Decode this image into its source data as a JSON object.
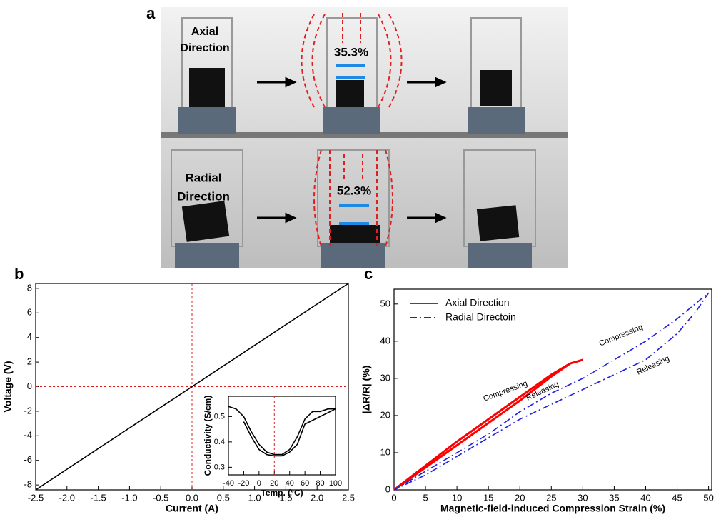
{
  "panel_a": {
    "label": "a",
    "top_label": [
      "Axial",
      "Direction"
    ],
    "top_strain": "35.3%",
    "bottom_label": [
      "Radial",
      "Direction"
    ],
    "bottom_strain": "52.3%"
  },
  "chart_data": [
    {
      "type": "line",
      "label": "b",
      "xlabel": "Current (A)",
      "ylabel": "Voltage (V)",
      "annotations": [
        "A",
        "V"
      ],
      "xlim": [
        -2.5,
        2.5
      ],
      "ylim": [
        -8.4,
        8.4
      ],
      "xticks": [
        -2.5,
        {
          "value": -2,
          "label": "-2.0"
        },
        -1.5,
        {
          "value": -1,
          "label": "-1.0"
        },
        -0.5,
        {
          "value": 0,
          "label": "0.0"
        },
        0.5,
        {
          "value": 1,
          "label": "1.0"
        },
        1.5,
        {
          "value": 2,
          "label": "2.0"
        },
        2.5
      ],
      "yticks": [
        -8,
        -6,
        -4,
        -2,
        0,
        2,
        4,
        6,
        8
      ],
      "vlines": [
        0
      ],
      "hlines": [
        0
      ],
      "series": [
        {
          "color": "#000000",
          "x": [
            -2.5,
            2.5
          ],
          "values": [
            -8.4,
            8.4
          ]
        }
      ]
    },
    {
      "type": "line",
      "xlabel": "Temp. (°C)",
      "ylabel": "Conductivity (S/cm)",
      "xlim": [
        -40,
        100
      ],
      "ylim": [
        0.27,
        0.58
      ],
      "xticks": [
        -40,
        -20,
        0,
        20,
        40,
        60,
        80,
        100
      ],
      "yticks": [
        0.3,
        0.4,
        0.5
      ],
      "vlines": [
        20
      ],
      "series": [
        {
          "color": "#000000",
          "x": [
            -40,
            -30,
            -20,
            -10,
            0,
            10,
            20,
            30,
            40,
            50,
            60,
            70,
            80,
            90,
            100,
            60,
            50,
            40,
            30,
            20,
            10,
            0,
            -10,
            -20
          ],
          "values": [
            0.54,
            0.53,
            0.5,
            0.44,
            0.39,
            0.36,
            0.35,
            0.35,
            0.37,
            0.42,
            0.49,
            0.52,
            0.52,
            0.53,
            0.53,
            0.47,
            0.39,
            0.36,
            0.345,
            0.345,
            0.35,
            0.37,
            0.42,
            0.48
          ]
        }
      ]
    },
    {
      "type": "line",
      "label": "c",
      "xlabel": "Magnetic-field-induced Compression Strain (%)",
      "ylabel": "|ΔR/R| (%)",
      "xlim": [
        0,
        50.5
      ],
      "ylim": [
        0,
        54
      ],
      "xticks": [
        0,
        5,
        10,
        15,
        20,
        25,
        30,
        35,
        40,
        45,
        50
      ],
      "yticks": [
        0,
        10,
        20,
        30,
        40,
        50
      ],
      "legend": "upper left",
      "annotations": [
        "Compressing",
        "Releasing",
        "Compressing",
        "Releasing"
      ],
      "series": [
        {
          "name": "Axial Direction",
          "color": "#ff0000",
          "dash": "solid",
          "x": [
            0,
            5,
            10,
            15,
            20,
            25,
            28,
            30,
            28,
            25,
            20,
            15,
            10,
            5,
            0
          ],
          "values": [
            0,
            6.5,
            13,
            19,
            25,
            31,
            34,
            35,
            34,
            30.5,
            24,
            18,
            12,
            6,
            0
          ]
        },
        {
          "name": "Radial Directoin",
          "color": "#2020e0",
          "dash": "dashdot",
          "x": [
            0,
            5,
            10,
            15,
            20,
            25,
            30,
            35,
            40,
            45,
            50,
            48,
            45,
            40,
            35,
            30,
            25,
            20,
            15,
            10,
            5,
            0
          ],
          "values": [
            0,
            5,
            10,
            15,
            21,
            26,
            30,
            35,
            40,
            46,
            53,
            48,
            42,
            35,
            31,
            27,
            23,
            19,
            14,
            9,
            4,
            0
          ]
        }
      ]
    }
  ]
}
